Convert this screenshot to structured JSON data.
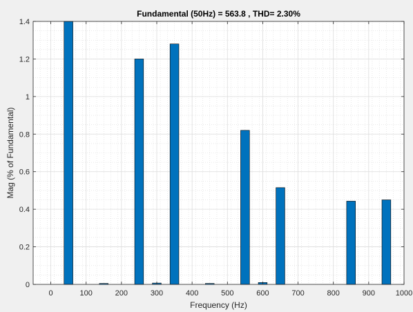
{
  "chart_data": {
    "type": "bar",
    "title": "Fundamental (50Hz) = 563.8 , THD= 2.30%",
    "xlabel": "Frequency (Hz)",
    "ylabel": "Mag (% of Fundamental)",
    "xlim": [
      -50,
      1000
    ],
    "ylim": [
      0,
      1.4
    ],
    "xticks": [
      0,
      100,
      200,
      300,
      400,
      500,
      600,
      700,
      800,
      900,
      1000
    ],
    "yticks": [
      0,
      0.2,
      0.4,
      0.6,
      0.8,
      1,
      1.2,
      1.4
    ],
    "xtick_labels": [
      "0",
      "100",
      "200",
      "300",
      "400",
      "500",
      "600",
      "700",
      "800",
      "900",
      "1000"
    ],
    "ytick_labels": [
      "0",
      "0.2",
      "0.4",
      "0.6",
      "0.8",
      "1",
      "1.2",
      "1.4"
    ],
    "grid": true,
    "minor_grid": true,
    "bar_color": "#0072bd",
    "bar_width": 25,
    "x": [
      50,
      150,
      250,
      300,
      350,
      450,
      550,
      600,
      650,
      850,
      950
    ],
    "values": [
      1.4,
      0.005,
      1.2,
      0.007,
      1.28,
      0.005,
      0.82,
      0.01,
      0.515,
      0.443,
      0.45
    ]
  }
}
